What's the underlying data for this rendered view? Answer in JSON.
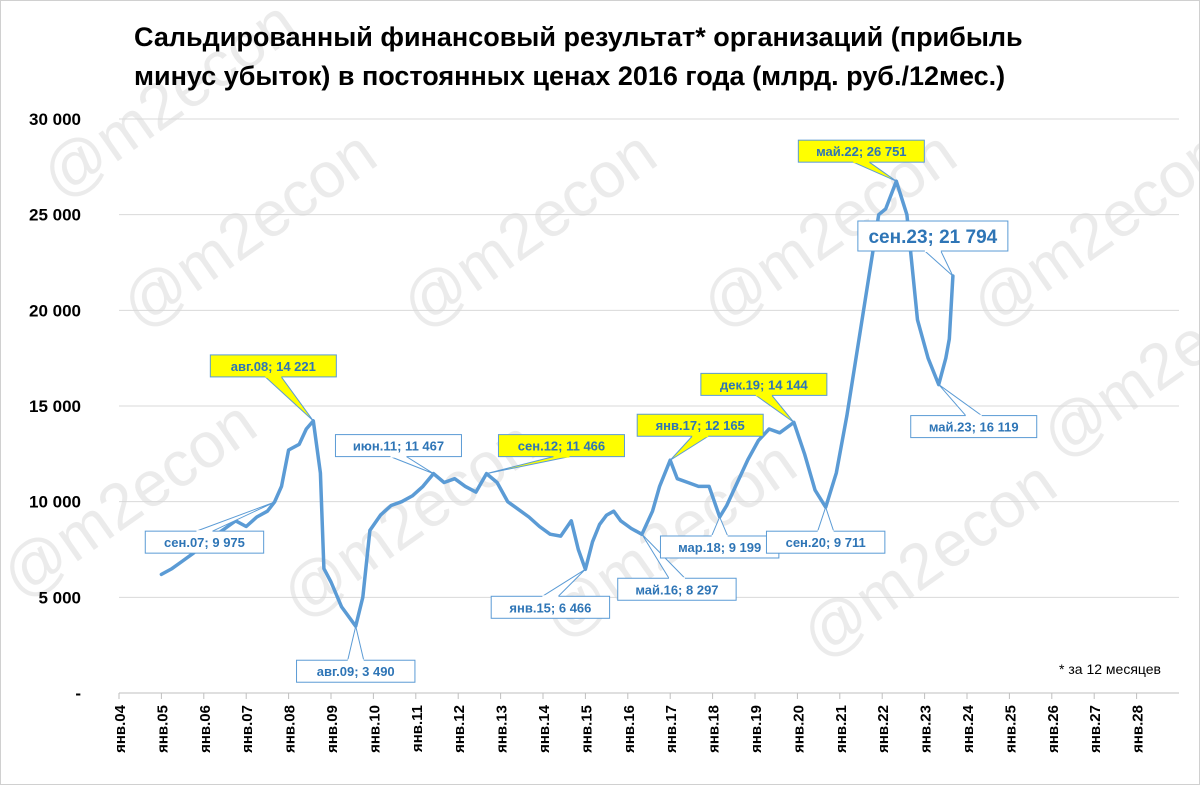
{
  "chart_data": {
    "type": "line",
    "title_lines": [
      "Сальдированный финансовый результат* организаций (прибыль",
      "минус убыток) в постоянных ценах 2016 года (млрд. руб./12мес.)"
    ],
    "footnote": "* за 12 месяцев",
    "watermark": "@m2econ",
    "ylim": [
      0,
      30000
    ],
    "y_ticks": [
      0,
      5000,
      10000,
      15000,
      20000,
      25000,
      30000
    ],
    "y_tick_labels": [
      "-",
      "5 000",
      "10 000",
      "15 000",
      "20 000",
      "25 000",
      "30 000"
    ],
    "x_range": [
      "2004-01",
      "2029-01"
    ],
    "x_tick_labels": [
      "янв.04",
      "янв.05",
      "янв.06",
      "янв.07",
      "янв.08",
      "янв.09",
      "янв.10",
      "янв.11",
      "янв.12",
      "янв.13",
      "янв.14",
      "янв.15",
      "янв.16",
      "янв.17",
      "янв.18",
      "янв.19",
      "янв.20",
      "янв.21",
      "янв.22",
      "янв.23",
      "янв.24",
      "янв.25",
      "янв.26",
      "янв.27",
      "янв.28"
    ],
    "grid": "horizontal",
    "line_color": "#5B9BD5",
    "series": [
      {
        "points": [
          [
            "2005-01",
            6200
          ],
          [
            "2005-04",
            6500
          ],
          [
            "2005-07",
            6900
          ],
          [
            "2005-10",
            7300
          ],
          [
            "2006-01",
            7800
          ],
          [
            "2006-04",
            8200
          ],
          [
            "2006-07",
            8600
          ],
          [
            "2006-10",
            9000
          ],
          [
            "2007-01",
            8700
          ],
          [
            "2007-04",
            9200
          ],
          [
            "2007-07",
            9500
          ],
          [
            "2007-09",
            9975
          ],
          [
            "2007-11",
            10800
          ],
          [
            "2008-01",
            12700
          ],
          [
            "2008-04",
            13000
          ],
          [
            "2008-06",
            13800
          ],
          [
            "2008-08",
            14221
          ],
          [
            "2008-10",
            11500
          ],
          [
            "2008-11",
            6500
          ],
          [
            "2009-01",
            5800
          ],
          [
            "2009-04",
            4500
          ],
          [
            "2009-08",
            3490
          ],
          [
            "2009-10",
            5000
          ],
          [
            "2009-12",
            8500
          ],
          [
            "2010-03",
            9300
          ],
          [
            "2010-06",
            9800
          ],
          [
            "2010-09",
            10000
          ],
          [
            "2010-12",
            10300
          ],
          [
            "2011-03",
            10800
          ],
          [
            "2011-06",
            11467
          ],
          [
            "2011-09",
            11000
          ],
          [
            "2011-12",
            11200
          ],
          [
            "2012-03",
            10800
          ],
          [
            "2012-06",
            10500
          ],
          [
            "2012-09",
            11466
          ],
          [
            "2012-12",
            11000
          ],
          [
            "2013-03",
            10000
          ],
          [
            "2013-06",
            9600
          ],
          [
            "2013-09",
            9200
          ],
          [
            "2013-12",
            8700
          ],
          [
            "2014-03",
            8300
          ],
          [
            "2014-06",
            8200
          ],
          [
            "2014-09",
            9000
          ],
          [
            "2014-11",
            7500
          ],
          [
            "2015-01",
            6466
          ],
          [
            "2015-03",
            7900
          ],
          [
            "2015-05",
            8800
          ],
          [
            "2015-07",
            9300
          ],
          [
            "2015-09",
            9500
          ],
          [
            "2015-11",
            9000
          ],
          [
            "2016-02",
            8600
          ],
          [
            "2016-05",
            8297
          ],
          [
            "2016-08",
            9500
          ],
          [
            "2016-10",
            10800
          ],
          [
            "2017-01",
            12165
          ],
          [
            "2017-03",
            11200
          ],
          [
            "2017-06",
            11000
          ],
          [
            "2017-09",
            10800
          ],
          [
            "2017-12",
            10800
          ],
          [
            "2018-03",
            9199
          ],
          [
            "2018-05",
            9800
          ],
          [
            "2018-08",
            11000
          ],
          [
            "2018-11",
            12200
          ],
          [
            "2019-02",
            13200
          ],
          [
            "2019-05",
            13800
          ],
          [
            "2019-08",
            13600
          ],
          [
            "2019-12",
            14144
          ],
          [
            "2020-03",
            12500
          ],
          [
            "2020-06",
            10600
          ],
          [
            "2020-09",
            9711
          ],
          [
            "2020-12",
            11500
          ],
          [
            "2021-03",
            14500
          ],
          [
            "2021-06",
            18000
          ],
          [
            "2021-09",
            21500
          ],
          [
            "2021-12",
            25000
          ],
          [
            "2022-02",
            25300
          ],
          [
            "2022-05",
            26751
          ],
          [
            "2022-08",
            25000
          ],
          [
            "2022-11",
            19500
          ],
          [
            "2023-02",
            17500
          ],
          [
            "2023-05",
            16119
          ],
          [
            "2023-07",
            17500
          ],
          [
            "2023-08",
            18500
          ],
          [
            "2023-09",
            21794
          ]
        ]
      }
    ],
    "annotations": [
      {
        "label": "авг.08;  14 221",
        "x": "2008-08",
        "y": 14221,
        "style": "highlight",
        "size": "normal"
      },
      {
        "label": "сен.07;  9 975",
        "x": "2007-09",
        "y": 9975,
        "style": "plain",
        "size": "normal"
      },
      {
        "label": "авг.09;  3 490",
        "x": "2009-08",
        "y": 3490,
        "style": "plain",
        "size": "normal"
      },
      {
        "label": "июн.11;  11 467",
        "x": "2011-06",
        "y": 11467,
        "style": "plain",
        "size": "normal"
      },
      {
        "label": "сен.12;  11 466",
        "x": "2012-09",
        "y": 11466,
        "style": "highlight",
        "size": "normal"
      },
      {
        "label": "янв.15;  6 466",
        "x": "2015-01",
        "y": 6466,
        "style": "plain",
        "size": "normal"
      },
      {
        "label": "май.16;  8 297",
        "x": "2016-05",
        "y": 8297,
        "style": "plain",
        "size": "normal"
      },
      {
        "label": "янв.17;  12 165",
        "x": "2017-01",
        "y": 12165,
        "style": "highlight",
        "size": "normal"
      },
      {
        "label": "мар.18;  9 199",
        "x": "2018-03",
        "y": 9199,
        "style": "plain",
        "size": "normal"
      },
      {
        "label": "дек.19;  14 144",
        "x": "2019-12",
        "y": 14144,
        "style": "highlight",
        "size": "normal"
      },
      {
        "label": "сен.20;  9 711",
        "x": "2020-09",
        "y": 9711,
        "style": "plain",
        "size": "normal"
      },
      {
        "label": "май.22;  26 751",
        "x": "2022-05",
        "y": 26751,
        "style": "highlight",
        "size": "normal"
      },
      {
        "label": "сен.23;  21 794",
        "x": "2023-09",
        "y": 21794,
        "style": "plain",
        "size": "big"
      },
      {
        "label": "май.23;  16 119",
        "x": "2023-05",
        "y": 16119,
        "style": "plain",
        "size": "normal"
      }
    ],
    "colors": {
      "line": "#5B9BD5",
      "label_text": "#2E75B6",
      "highlight_fill": "#FFFF00",
      "plain_fill": "#FFFFFF",
      "border": "#5B9BD5"
    }
  }
}
